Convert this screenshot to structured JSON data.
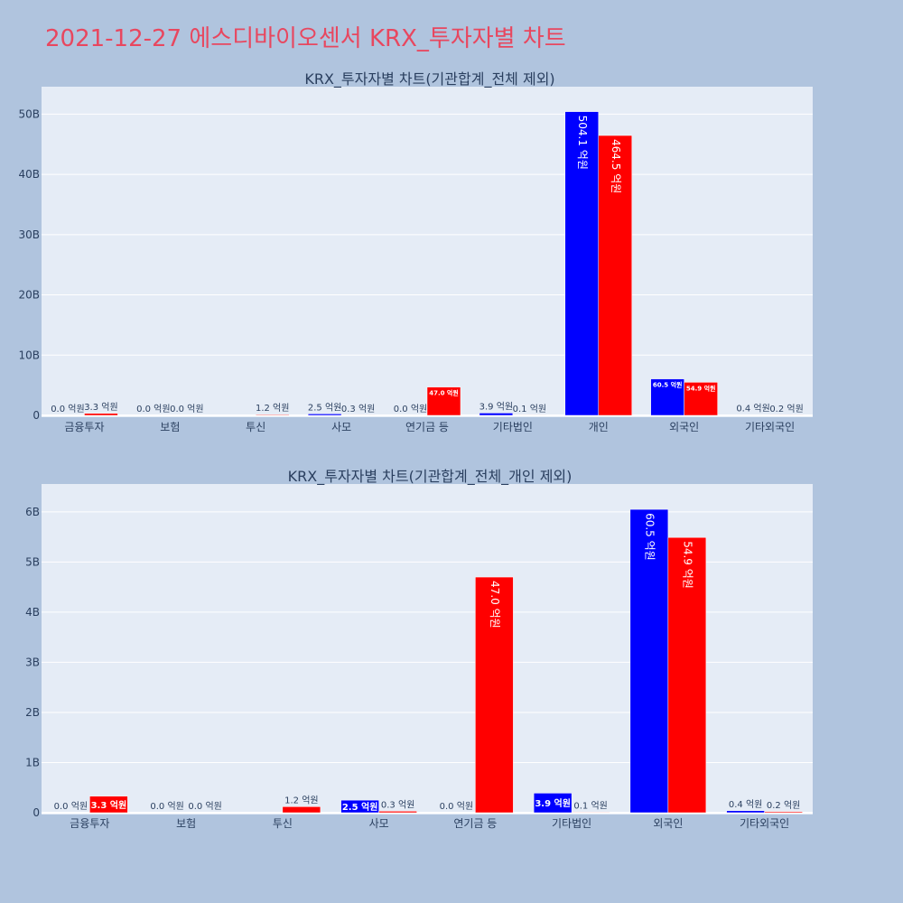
{
  "page": {
    "title": "2021-12-27 에스디바이오센서 KRX_투자자별 차트"
  },
  "colors": {
    "buy": "#0000ff",
    "sell": "#ff0000",
    "background": "#b0c4de",
    "plot_background": "#e5ecf6",
    "title": "#e8475f",
    "text": "#2a3f5f"
  },
  "chart_data": [
    {
      "type": "bar",
      "title": "KRX_투자자별 차트(기관합계_전체 제외)",
      "categories": [
        "금융투자",
        "보험",
        "투신",
        "사모",
        "연기금 등",
        "기타법인",
        "개인",
        "외국인",
        "기타외국인"
      ],
      "series": [
        {
          "name": "매수",
          "color": "#0000ff",
          "values": [
            0.0,
            0.0,
            0.0,
            0.25,
            0.0,
            0.39,
            50.41,
            6.05,
            0.04
          ],
          "labels": [
            "0.0 억원",
            "0.0 억원",
            "",
            "2.5 억원",
            "0.0 억원",
            "3.9 억원",
            "504.1 억원",
            "60.5 억원",
            "0.4 억원"
          ]
        },
        {
          "name": "매도",
          "color": "#ff0000",
          "values": [
            0.33,
            0.0,
            0.12,
            0.03,
            4.7,
            0.01,
            46.45,
            5.49,
            0.02
          ],
          "labels": [
            "3.3 억원",
            "0.0 억원",
            "1.2 억원",
            "0.3 억원",
            "47.0 억원",
            "0.1 억원",
            "464.5 억원",
            "54.9 억원",
            "0.2 억원"
          ]
        }
      ],
      "ylim": [
        0,
        53.5
      ],
      "yticks": [
        0,
        10,
        20,
        30,
        40,
        50
      ],
      "ytick_labels": [
        "0",
        "10B",
        "20B",
        "30B",
        "40B",
        "50B"
      ],
      "xlabel": "",
      "ylabel": ""
    },
    {
      "type": "bar",
      "title": "KRX_투자자별 차트(기관합계_전체_개인 제외)",
      "categories": [
        "금융투자",
        "보험",
        "투신",
        "사모",
        "연기금 등",
        "기타법인",
        "외국인",
        "기타외국인"
      ],
      "series": [
        {
          "name": "매수",
          "color": "#0000ff",
          "values": [
            0.0,
            0.0,
            0.0,
            0.25,
            0.0,
            0.39,
            6.05,
            0.04
          ],
          "labels": [
            "0.0 억원",
            "0.0 억원",
            "",
            "2.5 억원",
            "0.0 억원",
            "3.9 억원",
            "60.5 억원",
            "0.4 억원"
          ]
        },
        {
          "name": "매도",
          "color": "#ff0000",
          "values": [
            0.33,
            0.0,
            0.12,
            0.03,
            4.7,
            0.01,
            5.49,
            0.02
          ],
          "labels": [
            "3.3 억원",
            "0.0 억원",
            "1.2 억원",
            "0.3 억원",
            "47.0 억원",
            "0.1 억원",
            "54.9 억원",
            "0.2 억원"
          ]
        }
      ],
      "ylim": [
        0,
        6.43
      ],
      "yticks": [
        0,
        1,
        2,
        3,
        4,
        5,
        6
      ],
      "ytick_labels": [
        "0",
        "1B",
        "2B",
        "3B",
        "4B",
        "5B",
        "6B"
      ],
      "xlabel": "",
      "ylabel": ""
    }
  ]
}
